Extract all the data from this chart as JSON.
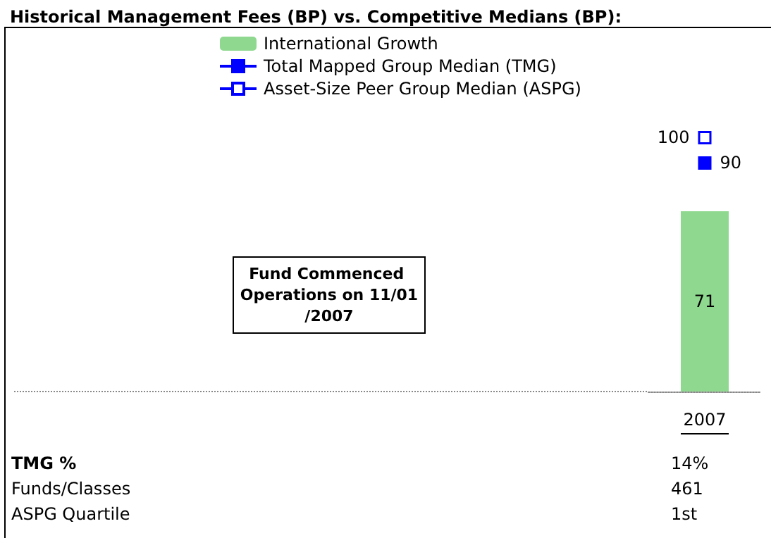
{
  "chart_data": {
    "type": "bar",
    "title": "Historical Management Fees (BP) vs. Competitive Medians (BP):",
    "categories": [
      "2007"
    ],
    "series": [
      {
        "name": "International Growth",
        "color": "#8fd88f",
        "values": [
          71
        ]
      },
      {
        "name": "Total Mapped Group Median (TMG)",
        "type": "line",
        "color": "#0000ff",
        "values": [
          90
        ]
      },
      {
        "name": "Asset-Size Peer Group Median (ASPG)",
        "type": "line",
        "color": "#0000ff",
        "values": [
          100
        ]
      }
    ],
    "ylim": [
      0,
      142
    ],
    "tick_labels": "x",
    "data_labels": true,
    "marker": "square",
    "legend": "top",
    "grid": false,
    "annotations": [
      "Fund Commenced Operations on 11/01/2007",
      "TMG %",
      "14%",
      "Funds/Classes",
      "461",
      "ASPG Quartile",
      "1st"
    ]
  }
}
